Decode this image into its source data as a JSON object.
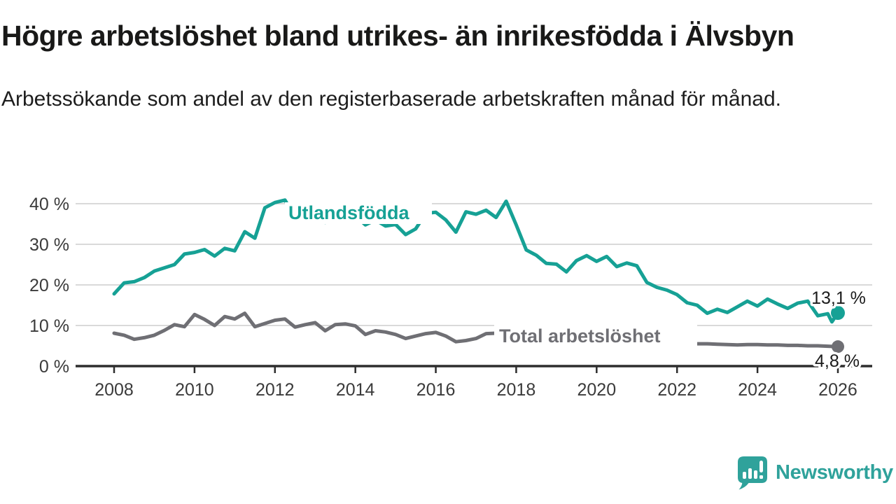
{
  "chart_data": {
    "type": "line",
    "title": "Högre arbetslöshet bland utrikes- än inrikesfödda i Älvsbyn",
    "subtitle": "Arbetssökande som andel av den registerbaserade arbetskraften månad för månad.",
    "unit": "%",
    "grid": true,
    "legend_position": "inline-labels",
    "xlim": [
      2007.05,
      2026.85
    ],
    "ylim": [
      0,
      42
    ],
    "x_ticks": {
      "values": [
        2008,
        2010,
        2012,
        2014,
        2016,
        2018,
        2020,
        2022,
        2024,
        2026
      ],
      "labels": [
        "2008",
        "2010",
        "2012",
        "2014",
        "2016",
        "2018",
        "2020",
        "2022",
        "2024",
        "2026"
      ]
    },
    "y_ticks": {
      "values": [
        0,
        10,
        20,
        30,
        40
      ],
      "labels": [
        "0 %",
        "10 %",
        "20 %",
        "30 %",
        "40 %"
      ]
    },
    "grid_color": "#D9D9D9",
    "axis_color": "#2D2D2D",
    "text_color": "#3B3B3B",
    "label_color": "#1B1B1B",
    "x": [
      2008,
      2008.25,
      2008.5,
      2008.75,
      2009,
      2009.25,
      2009.5,
      2009.75,
      2010,
      2010.25,
      2010.5,
      2010.75,
      2011,
      2011.25,
      2011.5,
      2011.75,
      2012,
      2012.25,
      2012.5,
      2012.75,
      2013,
      2013.25,
      2013.5,
      2013.75,
      2014,
      2014.25,
      2014.5,
      2014.75,
      2015,
      2015.25,
      2015.5,
      2015.75,
      2016,
      2016.25,
      2016.5,
      2016.75,
      2017,
      2017.25,
      2017.5,
      2017.75,
      2018,
      2018.25,
      2018.5,
      2018.75,
      2019,
      2019.25,
      2019.5,
      2019.75,
      2020,
      2020.25,
      2020.5,
      2020.75,
      2021,
      2021.25,
      2021.5,
      2021.75,
      2022,
      2022.25,
      2022.5,
      2022.75,
      2023,
      2023.25,
      2023.5,
      2023.75,
      2024,
      2024.25,
      2024.5,
      2024.75,
      2025,
      2025.25,
      2025.5,
      2025.75,
      2025.85,
      2026.0
    ],
    "series": [
      {
        "id": "utlandsfodda",
        "name": "Utlandsfödda",
        "color": "#16A195",
        "end_label": "13,1 %",
        "last_value": 13.1,
        "values": [
          17.8,
          20.5,
          20.8,
          21.8,
          23.4,
          24.2,
          25.0,
          27.6,
          28.0,
          28.7,
          27.1,
          29.0,
          28.4,
          33.1,
          31.5,
          39.0,
          40.3,
          40.9,
          36.7,
          38.5,
          37.6,
          35.4,
          37.4,
          36.6,
          37.0,
          34.8,
          36.0,
          34.5,
          34.9,
          32.4,
          33.8,
          37.6,
          37.9,
          36.0,
          33.0,
          38.0,
          37.4,
          38.4,
          36.6,
          40.6,
          34.8,
          28.6,
          27.3,
          25.3,
          25.1,
          23.2,
          26.0,
          27.2,
          25.8,
          27.0,
          24.5,
          25.4,
          24.7,
          20.6,
          19.4,
          18.7,
          17.6,
          15.6,
          15.0,
          13.0,
          14.0,
          13.2,
          14.6,
          16.0,
          14.8,
          16.5,
          15.3,
          14.2,
          15.5,
          16.0,
          12.4,
          12.9,
          10.9,
          13.1
        ]
      },
      {
        "id": "total",
        "name": "Total arbetslöshet",
        "color": "#6F6F74",
        "end_label": "4,8 %",
        "last_value": 4.8,
        "values": [
          8.1,
          7.6,
          6.6,
          7.0,
          7.6,
          8.8,
          10.2,
          9.7,
          12.7,
          11.5,
          10.0,
          12.2,
          11.6,
          13.0,
          9.7,
          10.5,
          11.3,
          11.6,
          9.6,
          10.2,
          10.7,
          8.7,
          10.2,
          10.4,
          9.9,
          7.8,
          8.7,
          8.4,
          7.8,
          6.8,
          7.4,
          8.0,
          8.3,
          7.4,
          6.0,
          6.3,
          6.8,
          8.0,
          8.1,
          8.2,
          8.0,
          7.7,
          7.4,
          7.1,
          6.9,
          6.7,
          6.5,
          6.6,
          6.8,
          7.0,
          6.8,
          6.6,
          6.4,
          6.2,
          6.0,
          5.8,
          5.7,
          5.6,
          5.5,
          5.5,
          5.4,
          5.3,
          5.2,
          5.3,
          5.3,
          5.2,
          5.2,
          5.1,
          5.1,
          5.0,
          5.0,
          4.9,
          4.85,
          4.8
        ]
      }
    ]
  },
  "footer": {
    "brand_name": "Newsworthy",
    "brand_color": "#2FA29B"
  }
}
